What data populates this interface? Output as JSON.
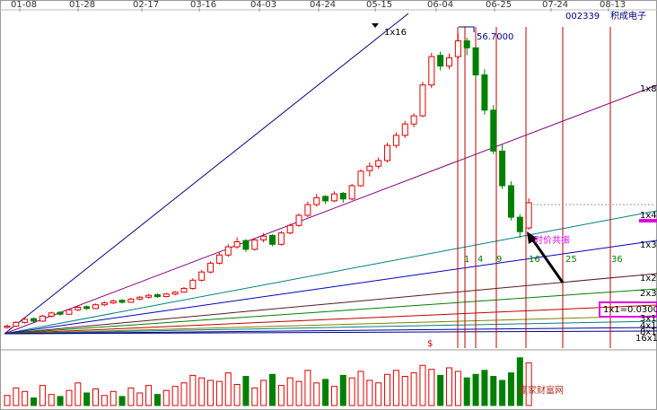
{
  "chart_data": {
    "type": "candlestick",
    "code": "002339",
    "name": "积成电子",
    "dates": [
      "01-08",
      "01-28",
      "02-17",
      "03-16",
      "04-03",
      "04-24",
      "05-15",
      "06-04",
      "06-25",
      "07-24",
      "08-13"
    ],
    "peak_label": "56.7000",
    "fan_labels": [
      "1x16",
      "1x8",
      "1x4",
      "1x3",
      "1x2",
      "2x3",
      "1x1=0.0300",
      "3x1",
      "4x1",
      "8x1",
      "16x1"
    ],
    "time_labels": [
      "1",
      "4",
      "9",
      "16",
      "25",
      "36"
    ],
    "annotation": "时价共振",
    "marker": "$",
    "watermark": "赢家财富网",
    "up_color": "#e00000",
    "down_color": "#008000",
    "ylim": [
      9,
      58
    ],
    "volume_ylim": [
      0,
      100
    ],
    "open": [
      10.0,
      10.2,
      10.8,
      11.4,
      11.0,
      11.8,
      12.4,
      12.1,
      12.8,
      13.3,
      13.0,
      13.6,
      13.9,
      14.3,
      14.0,
      14.5,
      14.8,
      15.2,
      14.9,
      15.3,
      15.6,
      16.2,
      17.5,
      18.8,
      20.2,
      21.5,
      22.8,
      23.8,
      22.4,
      23.9,
      24.6,
      23.2,
      25.0,
      26.2,
      27.8,
      29.5,
      30.8,
      30.1,
      31.3,
      30.4,
      32.5,
      34.9,
      35.6,
      36.5,
      38.9,
      40.5,
      42.3,
      43.6,
      48.5,
      53.2,
      51.5,
      53.0,
      55.5,
      54.4,
      50.1,
      44.5,
      38.0,
      32.5,
      27.5,
      25.8
    ],
    "high": [
      10.5,
      11.0,
      11.5,
      11.6,
      12.0,
      12.5,
      12.6,
      13.0,
      13.4,
      13.5,
      13.8,
      14.1,
      14.4,
      14.5,
      14.7,
      15.0,
      15.3,
      15.4,
      15.5,
      15.8,
      16.4,
      17.8,
      19.1,
      20.5,
      21.9,
      23.2,
      24.3,
      24.0,
      24.2,
      25.0,
      24.8,
      25.3,
      26.5,
      28.1,
      30.0,
      31.2,
      31.0,
      31.6,
      31.5,
      32.8,
      35.1,
      36.2,
      37.0,
      39.3,
      41.0,
      42.8,
      44.0,
      49.0,
      53.6,
      53.8,
      53.5,
      56.7,
      56.0,
      54.6,
      51.0,
      45.3,
      39.0,
      33.2,
      28.0,
      30.5
    ],
    "low": [
      9.8,
      10.1,
      10.6,
      10.8,
      10.9,
      11.6,
      11.9,
      12.0,
      12.6,
      12.8,
      12.9,
      13.4,
      13.7,
      13.8,
      13.9,
      14.3,
      14.6,
      14.7,
      14.8,
      15.1,
      15.5,
      16.0,
      17.3,
      18.6,
      20.0,
      21.2,
      22.5,
      22.0,
      22.2,
      23.5,
      22.9,
      23.0,
      24.8,
      26.0,
      27.5,
      29.2,
      29.6,
      29.9,
      29.8,
      30.2,
      32.3,
      34.0,
      35.2,
      36.2,
      38.5,
      40.1,
      41.8,
      43.4,
      48.0,
      50.8,
      51.0,
      52.6,
      53.2,
      49.5,
      43.8,
      37.5,
      32.0,
      27.0,
      24.2,
      25.5
    ],
    "close": [
      10.2,
      10.8,
      11.3,
      11.0,
      11.8,
      12.3,
      12.1,
      12.8,
      13.2,
      13.0,
      13.6,
      13.9,
      14.2,
      14.0,
      14.5,
      14.8,
      15.1,
      14.9,
      15.3,
      15.6,
      16.2,
      17.5,
      18.8,
      20.2,
      21.5,
      22.8,
      23.6,
      22.4,
      23.9,
      24.5,
      23.2,
      25.0,
      26.2,
      27.8,
      29.5,
      30.6,
      30.1,
      31.2,
      30.4,
      32.5,
      34.8,
      35.6,
      36.5,
      38.9,
      40.5,
      42.3,
      43.6,
      48.5,
      53.0,
      51.5,
      52.8,
      55.5,
      54.4,
      50.1,
      44.5,
      38.0,
      32.5,
      27.5,
      25.2,
      29.8
    ],
    "volume": [
      20,
      35,
      28,
      15,
      40,
      22,
      18,
      30,
      45,
      25,
      33,
      20,
      28,
      18,
      35,
      25,
      40,
      22,
      30,
      38,
      45,
      60,
      55,
      50,
      48,
      65,
      42,
      58,
      35,
      50,
      62,
      40,
      55,
      48,
      70,
      45,
      52,
      38,
      60,
      55,
      68,
      50,
      45,
      62,
      70,
      58,
      65,
      80,
      72,
      60,
      75,
      68,
      55,
      62,
      70,
      58,
      50,
      65,
      95,
      85
    ]
  }
}
